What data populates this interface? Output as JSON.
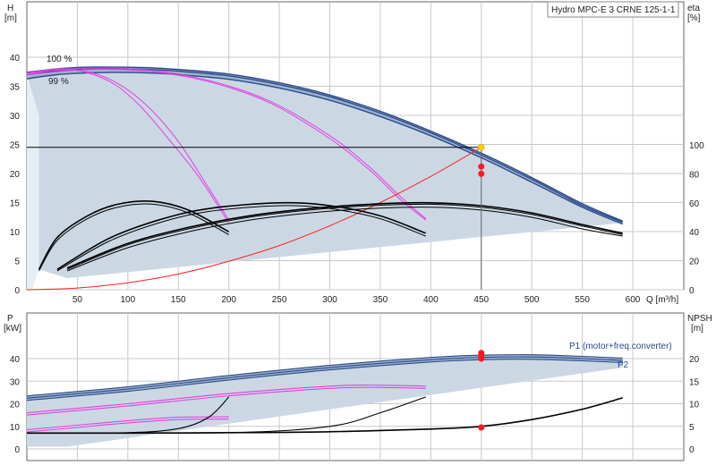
{
  "title": "Hydro MPC-E 3 CRNE 125-1-1",
  "chart_data": [
    {
      "type": "line",
      "panel": "top",
      "ylabel_left": "H",
      "yunit_left": "[m]",
      "ylabel_right": "eta",
      "yunit_right": "[%]",
      "xlabel": "Q [m³/h]",
      "xlim": [
        0,
        600
      ],
      "ylim_left": [
        0,
        45
      ],
      "ylim_right": [
        0,
        140
      ],
      "xticks": [
        50,
        100,
        150,
        200,
        250,
        300,
        350,
        400,
        450,
        500,
        550,
        600
      ],
      "xtick_labels": [
        "50",
        "100",
        "150",
        "200",
        "250",
        "300",
        "350",
        "400",
        "450",
        "500",
        "550",
        "600"
      ],
      "yticks_left": [
        0,
        5,
        10,
        15,
        20,
        25,
        30,
        35,
        40
      ],
      "yticks_left_labels": [
        "0",
        "5",
        "10",
        "15",
        "20",
        "25",
        "30",
        "35",
        "40"
      ],
      "yticks_right": [
        0,
        20,
        40,
        60,
        80,
        100
      ],
      "yticks_right_labels": [
        "0",
        "20",
        "40",
        "60",
        "80",
        "100"
      ],
      "annotations": [
        "100 %",
        "99 %"
      ],
      "duty_point": {
        "q": 450,
        "h": 24.5
      },
      "operating_points": [
        {
          "q": 450,
          "eta": 85
        },
        {
          "q": 450,
          "eta": 80
        }
      ],
      "series": [
        {
          "role": "head-max",
          "color": "#2b4a8a",
          "x": [
            0,
            30,
            60,
            90,
            120,
            150,
            200,
            250,
            300,
            350,
            400,
            450,
            500,
            550,
            590
          ],
          "y": [
            37.4,
            38.0,
            38.3,
            38.3,
            38.2,
            37.9,
            37.1,
            35.6,
            33.5,
            30.7,
            27.3,
            23.5,
            19.3,
            14.8,
            11.8
          ]
        },
        {
          "role": "head-max-2",
          "color": "#2b4a8a",
          "x": [
            0,
            30,
            60,
            90,
            120,
            150,
            200,
            250,
            300,
            350,
            400,
            450,
            500,
            550,
            590
          ],
          "y": [
            37.0,
            37.7,
            38.0,
            38.0,
            37.9,
            37.6,
            36.8,
            35.3,
            33.2,
            30.4,
            27.0,
            23.2,
            19.0,
            14.5,
            11.6
          ]
        },
        {
          "role": "head-99",
          "color": "#2b4a8a",
          "x": [
            0,
            30,
            60,
            90,
            120,
            150,
            200,
            250,
            300,
            350,
            400,
            450,
            500,
            550,
            590
          ],
          "y": [
            36.3,
            37.0,
            37.3,
            37.4,
            37.3,
            37.0,
            36.2,
            34.7,
            32.6,
            29.8,
            26.5,
            22.7,
            18.5,
            14.2,
            11.3
          ]
        },
        {
          "role": "head-1pump",
          "color": "#e040e0",
          "x": [
            0,
            40,
            80,
            110,
            140,
            170,
            200
          ],
          "y": [
            37.3,
            38.0,
            36.0,
            32.0,
            26.0,
            19.5,
            11.5
          ]
        },
        {
          "role": "head-1pump-b",
          "color": "#e040e0",
          "x": [
            0,
            30,
            60,
            90,
            120,
            150,
            180,
            200
          ],
          "y": [
            37.0,
            37.8,
            37.5,
            35.5,
            31.5,
            25.5,
            17.5,
            12.0
          ]
        },
        {
          "role": "head-2pump",
          "color": "#e040e0",
          "x": [
            0,
            60,
            120,
            180,
            240,
            300,
            340,
            370,
            395
          ],
          "y": [
            37.3,
            38.1,
            37.8,
            36.0,
            32.5,
            26.5,
            21.0,
            16.0,
            12.2
          ]
        },
        {
          "role": "head-2pump-b",
          "color": "#e040e0",
          "x": [
            0,
            60,
            120,
            180,
            240,
            300,
            340,
            370,
            395
          ],
          "y": [
            37.0,
            37.9,
            37.6,
            35.8,
            32.2,
            26.0,
            20.5,
            15.5,
            12.0
          ]
        },
        {
          "role": "system-curve",
          "color": "#ff2020",
          "x": [
            0,
            50,
            100,
            150,
            200,
            250,
            300,
            350,
            400,
            450
          ],
          "y": [
            0,
            0.3,
            1.2,
            2.7,
            4.9,
            7.6,
            11.0,
            15.0,
            19.5,
            24.5
          ]
        },
        {
          "role": "eta-1pump",
          "color": "#000000",
          "x": [
            12,
            30,
            60,
            90,
            125,
            160,
            200
          ],
          "y": [
            13,
            34,
            49,
            57,
            59,
            53,
            38
          ]
        },
        {
          "role": "eta-1pump-b",
          "color": "#000000",
          "x": [
            12,
            30,
            60,
            90,
            125,
            160,
            200
          ],
          "y": [
            14,
            36,
            51,
            59,
            61,
            55,
            40
          ]
        },
        {
          "role": "eta-2pump",
          "color": "#000000",
          "x": [
            30,
            80,
            130,
            180,
            250,
            300,
            350,
            395
          ],
          "y": [
            13,
            33,
            46,
            54,
            58,
            56,
            49,
            37
          ]
        },
        {
          "role": "eta-2pump-b",
          "color": "#000000",
          "x": [
            30,
            80,
            130,
            180,
            250,
            300,
            350,
            395
          ],
          "y": [
            14,
            35,
            48,
            56,
            60,
            58,
            51,
            39
          ]
        },
        {
          "role": "eta-3pump",
          "color": "#000000",
          "x": [
            40,
            100,
            160,
            220,
            280,
            340,
            400,
            450,
            500,
            550,
            590
          ],
          "y": [
            13,
            29,
            40,
            48,
            53,
            56,
            57,
            55,
            50,
            42,
            37
          ]
        },
        {
          "role": "eta-3pump-b",
          "color": "#000000",
          "x": [
            40,
            100,
            160,
            220,
            280,
            340,
            400,
            450,
            500,
            550,
            590
          ],
          "y": [
            14,
            31,
            42,
            50,
            55,
            58,
            59,
            57,
            52,
            44,
            38
          ]
        },
        {
          "role": "eta-3pump-c",
          "color": "#000000",
          "x": [
            40,
            100,
            160,
            220,
            280,
            340,
            400,
            450,
            500,
            550,
            590
          ],
          "y": [
            15,
            32,
            43,
            51,
            56,
            59,
            60,
            58,
            53,
            45,
            39
          ]
        }
      ]
    },
    {
      "type": "line",
      "panel": "bottom",
      "ylabel_left": "P",
      "yunit_left": "[kW]",
      "ylabel_right": "NPSH",
      "yunit_right": "[m]",
      "xlim": [
        0,
        600
      ],
      "ylim_left": [
        0,
        50
      ],
      "ylim_right": [
        0,
        25
      ],
      "yticks_left": [
        0,
        10,
        20,
        30,
        40
      ],
      "yticks_left_labels": [
        "0",
        "10",
        "20",
        "30",
        "40"
      ],
      "yticks_right": [
        0,
        5,
        10,
        15,
        20
      ],
      "yticks_right_labels": [
        "0",
        "5",
        "10",
        "15",
        "20"
      ],
      "legend": [
        "P1 (motor+freq.converter)",
        "P2"
      ],
      "operating_points": [
        {
          "q": 450,
          "p": 42.5
        },
        {
          "q": 450,
          "p": 41.5
        },
        {
          "q": 450,
          "p": 40.0
        },
        {
          "q": 450,
          "p": 9.5
        }
      ],
      "series": [
        {
          "role": "p1",
          "color": "#2b4a8a",
          "x": [
            0,
            100,
            200,
            300,
            400,
            450,
            500,
            550,
            590
          ],
          "y": [
            23.5,
            27.5,
            32.5,
            37.0,
            40.5,
            41.5,
            41.7,
            41.0,
            40.2
          ]
        },
        {
          "role": "p1-b",
          "color": "#2b4a8a",
          "x": [
            0,
            100,
            200,
            300,
            400,
            450,
            500,
            550,
            590
          ],
          "y": [
            22.5,
            26.5,
            31.5,
            36.0,
            39.5,
            40.5,
            40.7,
            40.0,
            39.2
          ]
        },
        {
          "role": "p2",
          "color": "#2b4a8a",
          "x": [
            0,
            100,
            200,
            300,
            400,
            450,
            500,
            550,
            590
          ],
          "y": [
            21.5,
            25.5,
            30.5,
            35.0,
            38.5,
            39.5,
            39.7,
            39.0,
            38.2
          ]
        },
        {
          "role": "p-2pump",
          "color": "#e040e0",
          "x": [
            0,
            100,
            200,
            300,
            350,
            395
          ],
          "y": [
            16.0,
            20.0,
            24.5,
            27.8,
            28.2,
            27.8
          ]
        },
        {
          "role": "p-2pump-b",
          "color": "#e040e0",
          "x": [
            0,
            100,
            200,
            300,
            350,
            395
          ],
          "y": [
            15.0,
            19.0,
            23.5,
            26.8,
            27.2,
            26.8
          ]
        },
        {
          "role": "p-1pump",
          "color": "#e040e0",
          "x": [
            0,
            50,
            100,
            150,
            200
          ],
          "y": [
            8.5,
            10.5,
            12.5,
            14.0,
            14.2
          ]
        },
        {
          "role": "p-1pump-b",
          "color": "#e040e0",
          "x": [
            0,
            50,
            100,
            150,
            200
          ],
          "y": [
            7.5,
            9.5,
            11.5,
            13.0,
            13.2
          ]
        },
        {
          "role": "npsh-1pump",
          "color": "#000000",
          "x": [
            0,
            100,
            150,
            180,
            200
          ],
          "y": [
            3.5,
            3.6,
            4.5,
            7.0,
            11.5
          ]
        },
        {
          "role": "npsh-2pump",
          "color": "#000000",
          "x": [
            0,
            200,
            300,
            350,
            395
          ],
          "y": [
            3.5,
            3.6,
            5.0,
            8.0,
            11.5
          ]
        },
        {
          "role": "npsh",
          "color": "#000000",
          "x": [
            0,
            100,
            200,
            300,
            400,
            450,
            500,
            550,
            590
          ],
          "y": [
            3.5,
            3.5,
            3.6,
            3.8,
            4.4,
            5.0,
            6.5,
            8.8,
            11.3
          ]
        }
      ]
    }
  ]
}
